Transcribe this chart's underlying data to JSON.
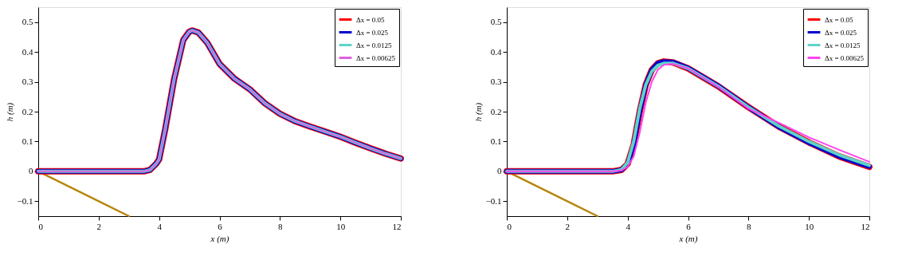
{
  "chart_data": [
    {
      "type": "line",
      "xlabel": "x (m)",
      "ylabel": "h (m)",
      "xlim": [
        0,
        12
      ],
      "ylim": [
        -0.15,
        0.55
      ],
      "xticks": [
        0,
        2,
        4,
        6,
        8,
        10,
        12
      ],
      "yticks": [
        -0.1,
        0,
        0.1,
        0.2,
        0.3,
        0.4,
        0.5
      ],
      "grid": false,
      "legend": "top right",
      "line_style": "solid",
      "marker": "none",
      "series": [
        {
          "name": "Δx = 0.05",
          "color": "#ff0000",
          "x": [
            0,
            1,
            2,
            3,
            3.5,
            3.7,
            3.9,
            4.0,
            4.2,
            4.5,
            4.8,
            5.0,
            5.1,
            5.3,
            5.6,
            6,
            6.5,
            7,
            7.5,
            8,
            8.5,
            9,
            9.5,
            10,
            10.5,
            11,
            11.5,
            12
          ],
          "values": [
            0,
            0,
            0,
            0,
            0,
            0.005,
            0.025,
            0.04,
            0.14,
            0.31,
            0.44,
            0.468,
            0.472,
            0.465,
            0.43,
            0.36,
            0.31,
            0.275,
            0.228,
            0.193,
            0.168,
            0.15,
            0.133,
            0.116,
            0.096,
            0.077,
            0.059,
            0.043
          ]
        },
        {
          "name": "Δx = 0.025",
          "color": "#0000cc",
          "x": [
            0,
            1,
            2,
            3,
            3.5,
            3.7,
            3.9,
            4.0,
            4.2,
            4.5,
            4.8,
            5.0,
            5.1,
            5.3,
            5.6,
            6,
            6.5,
            7,
            7.5,
            8,
            8.5,
            9,
            9.5,
            10,
            10.5,
            11,
            11.5,
            12
          ],
          "values": [
            0,
            0,
            0,
            0,
            0,
            0.005,
            0.025,
            0.04,
            0.14,
            0.31,
            0.44,
            0.468,
            0.472,
            0.465,
            0.43,
            0.36,
            0.31,
            0.275,
            0.228,
            0.193,
            0.168,
            0.15,
            0.133,
            0.116,
            0.096,
            0.077,
            0.059,
            0.043
          ]
        },
        {
          "name": "Δx = 0.0125",
          "color": "#5fd3c8",
          "x": [
            0,
            1,
            2,
            3,
            3.5,
            3.7,
            3.9,
            4.0,
            4.2,
            4.5,
            4.8,
            5.0,
            5.1,
            5.3,
            5.6,
            6,
            6.5,
            7,
            7.5,
            8,
            8.5,
            9,
            9.5,
            10,
            10.5,
            11,
            11.5,
            12
          ],
          "values": [
            0,
            0,
            0,
            0,
            0,
            0.005,
            0.025,
            0.04,
            0.14,
            0.31,
            0.44,
            0.468,
            0.472,
            0.465,
            0.43,
            0.36,
            0.31,
            0.275,
            0.228,
            0.193,
            0.168,
            0.15,
            0.133,
            0.116,
            0.096,
            0.077,
            0.059,
            0.043
          ]
        },
        {
          "name": "Δx = 0.00625",
          "color": "#e060e0",
          "x": [
            0,
            1,
            2,
            3,
            3.5,
            3.7,
            3.9,
            4.0,
            4.2,
            4.5,
            4.8,
            5.0,
            5.1,
            5.3,
            5.6,
            6,
            6.5,
            7,
            7.5,
            8,
            8.5,
            9,
            9.5,
            10,
            10.5,
            11,
            11.5,
            12
          ],
          "values": [
            0,
            0,
            0,
            0,
            0,
            0.005,
            0.025,
            0.04,
            0.14,
            0.31,
            0.44,
            0.468,
            0.472,
            0.465,
            0.43,
            0.36,
            0.31,
            0.275,
            0.228,
            0.193,
            0.168,
            0.15,
            0.133,
            0.116,
            0.096,
            0.077,
            0.059,
            0.043
          ]
        },
        {
          "color": "#b8860b",
          "x": [
            0,
            3
          ],
          "values": [
            0,
            -0.15
          ]
        }
      ]
    },
    {
      "type": "line",
      "xlabel": "x (m)",
      "ylabel": "h (m)",
      "xlim": [
        0,
        12
      ],
      "ylim": [
        -0.15,
        0.55
      ],
      "xticks": [
        0,
        2,
        4,
        6,
        8,
        10,
        12
      ],
      "yticks": [
        -0.1,
        0,
        0.1,
        0.2,
        0.3,
        0.4,
        0.5
      ],
      "grid": false,
      "legend": "top right",
      "line_style": "solid",
      "marker": "none",
      "series": [
        {
          "name": "Δx = 0.05",
          "color": "#ff0000",
          "x": [
            0,
            3,
            3.5,
            3.8,
            4.0,
            4.2,
            4.4,
            4.6,
            4.8,
            5.0,
            5.2,
            5.5,
            6,
            7,
            8,
            9,
            10,
            11,
            12
          ],
          "values": [
            0,
            0,
            0,
            0.005,
            0.025,
            0.09,
            0.2,
            0.29,
            0.34,
            0.362,
            0.368,
            0.365,
            0.345,
            0.285,
            0.215,
            0.15,
            0.097,
            0.05,
            0.015
          ]
        },
        {
          "name": "Δx = 0.025",
          "color": "#0000cc",
          "x": [
            0,
            3,
            3.5,
            3.8,
            4.0,
            4.2,
            4.4,
            4.6,
            4.8,
            5.0,
            5.2,
            5.5,
            6,
            7,
            8,
            9,
            10,
            11,
            12
          ],
          "values": [
            0,
            0,
            0,
            0.005,
            0.025,
            0.09,
            0.2,
            0.29,
            0.34,
            0.362,
            0.368,
            0.366,
            0.346,
            0.286,
            0.215,
            0.149,
            0.096,
            0.05,
            0.016
          ]
        },
        {
          "name": "Δx = 0.0125",
          "color": "#5fd3c8",
          "x": [
            0,
            3,
            3.5,
            3.8,
            4.0,
            4.2,
            4.4,
            4.6,
            4.8,
            5.0,
            5.2,
            5.5,
            6,
            7,
            8,
            9,
            10,
            11,
            12
          ],
          "values": [
            0,
            0,
            0,
            0.006,
            0.03,
            0.1,
            0.21,
            0.29,
            0.335,
            0.355,
            0.362,
            0.362,
            0.345,
            0.285,
            0.215,
            0.152,
            0.1,
            0.055,
            0.02
          ]
        },
        {
          "name": "Δx = 0.00625",
          "color": "#ff44ee",
          "x": [
            0,
            3,
            3.5,
            3.8,
            4.0,
            4.2,
            4.4,
            4.6,
            4.8,
            5.0,
            5.2,
            5.5,
            6,
            7,
            8,
            9,
            10,
            11,
            12
          ],
          "values": [
            0,
            0,
            0,
            0.003,
            0.015,
            0.05,
            0.13,
            0.23,
            0.3,
            0.34,
            0.357,
            0.36,
            0.345,
            0.283,
            0.21,
            0.163,
            0.114,
            0.072,
            0.032
          ]
        },
        {
          "color": "#b8860b",
          "x": [
            0,
            3
          ],
          "values": [
            0,
            -0.15
          ]
        }
      ]
    }
  ]
}
